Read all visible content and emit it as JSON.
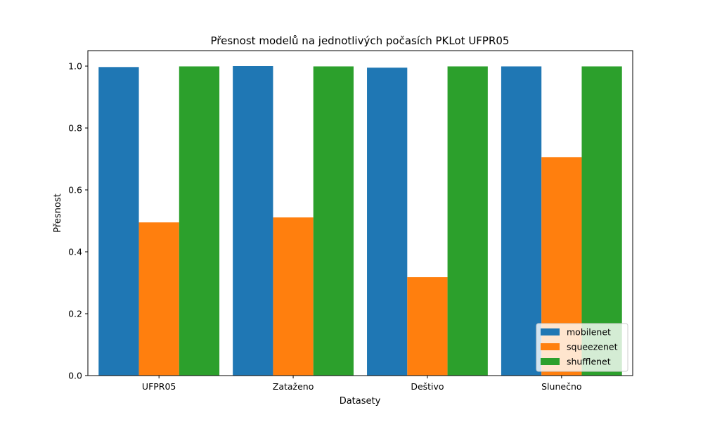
{
  "chart_data": {
    "type": "bar",
    "title": "Přesnost modelů na jednotlivých počasích PKLot UFPR05",
    "xlabel": "Datasety",
    "ylabel": "Přesnost",
    "categories": [
      "UFPR05",
      "Zataženo",
      "Deštivo",
      "Slunečno"
    ],
    "series": [
      {
        "name": "mobilenet",
        "color": "#1f77b4",
        "values": [
          0.997,
          1.0,
          0.995,
          0.999
        ]
      },
      {
        "name": "squeezenet",
        "color": "#ff7f0e",
        "values": [
          0.495,
          0.511,
          0.318,
          0.706
        ]
      },
      {
        "name": "shufflenet",
        "color": "#2ca02c",
        "values": [
          0.999,
          0.999,
          0.999,
          0.999
        ]
      }
    ],
    "ylim": [
      0,
      1.05
    ],
    "yticks": [
      0.0,
      0.2,
      0.4,
      0.6,
      0.8,
      1.0
    ],
    "ytick_labels": [
      "0.0",
      "0.2",
      "0.4",
      "0.6",
      "0.8",
      "1.0"
    ],
    "legend": "lower-right",
    "grid": false
  }
}
